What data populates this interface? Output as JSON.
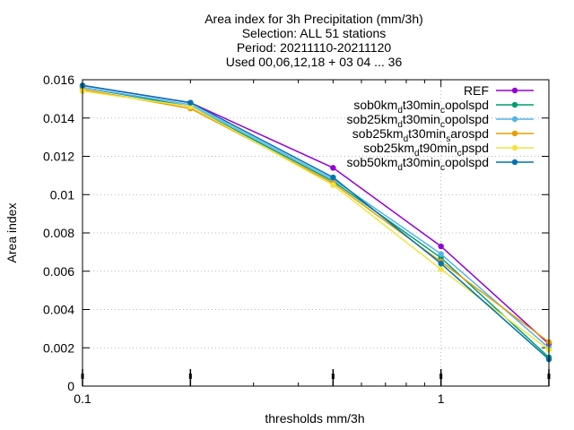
{
  "chart_data": {
    "type": "line",
    "title_lines": [
      "Area index  for 3h Precipitation (mm/3h)",
      "Selection: ALL      51 stations",
      "Period: 20211110-20211120",
      "Used 00,06,12,18 + 03 04 ... 36"
    ],
    "xlabel": "thresholds mm/3h",
    "ylabel": "Area index",
    "x_scale": "log",
    "xlim": [
      0.1,
      2
    ],
    "ylim": [
      0,
      0.016
    ],
    "x_ticks": [
      {
        "value": 0.1,
        "label": "0.1"
      },
      {
        "value": 1,
        "label": "1"
      }
    ],
    "y_ticks": [
      {
        "value": 0,
        "label": "0"
      },
      {
        "value": 0.002,
        "label": "0.002"
      },
      {
        "value": 0.004,
        "label": "0.004"
      },
      {
        "value": 0.006,
        "label": "0.006"
      },
      {
        "value": 0.008,
        "label": "0.008"
      },
      {
        "value": 0.01,
        "label": "0.01"
      },
      {
        "value": 0.012,
        "label": "0.012"
      },
      {
        "value": 0.014,
        "label": "0.014"
      },
      {
        "value": 0.016,
        "label": "0.016"
      }
    ],
    "x": [
      0.1,
      0.2,
      0.5,
      1,
      2
    ],
    "grid": true,
    "legend_position": "top-right",
    "series": [
      {
        "name": "REF",
        "legend": {
          "base": "REF",
          "parts": []
        },
        "color": "#9400d3",
        "values": [
          0.0157,
          0.0148,
          0.0114,
          0.0073,
          0.0022
        ]
      },
      {
        "name": "sob0kmdt30mincopolspd",
        "legend": {
          "base": "sob0km",
          "parts": [
            [
              "d",
              "t30min"
            ],
            [
              "c",
              "opolspd"
            ]
          ]
        },
        "color": "#009e73",
        "values": [
          0.0156,
          0.0146,
          0.0107,
          0.0067,
          0.0015
        ]
      },
      {
        "name": "sob25kmdt30mincopolspd",
        "legend": {
          "base": "sob25km",
          "parts": [
            [
              "d",
              "t30min"
            ],
            [
              "c",
              "opolspd"
            ]
          ]
        },
        "color": "#56b4e9",
        "values": [
          0.0156,
          0.0147,
          0.0108,
          0.0069,
          0.002
        ]
      },
      {
        "name": "sob25kmdt30minsarospd",
        "legend": {
          "base": "sob25km",
          "parts": [
            [
              "d",
              "t30min"
            ],
            [
              "s",
              "arospd"
            ]
          ]
        },
        "color": "#e69f00",
        "values": [
          0.0155,
          0.0145,
          0.0106,
          0.0065,
          0.0023
        ]
      },
      {
        "name": "sob25kmdt90mincpspd",
        "legend": {
          "base": "sob25km",
          "parts": [
            [
              "d",
              "t90min"
            ],
            [
              "c",
              "pspd"
            ]
          ]
        },
        "color": "#f0e442",
        "values": [
          0.0154,
          0.0146,
          0.0105,
          0.0061,
          0.0019
        ]
      },
      {
        "name": "sob50kmdt30mincopolspd",
        "legend": {
          "base": "sob50km",
          "parts": [
            [
              "d",
              "t30min"
            ],
            [
              "c",
              "opolspd"
            ]
          ]
        },
        "color": "#0072b2",
        "values": [
          0.0157,
          0.0148,
          0.0109,
          0.0064,
          0.0014
        ]
      }
    ],
    "marker_x": [
      0.1,
      0.2,
      0.5,
      1,
      2
    ]
  }
}
